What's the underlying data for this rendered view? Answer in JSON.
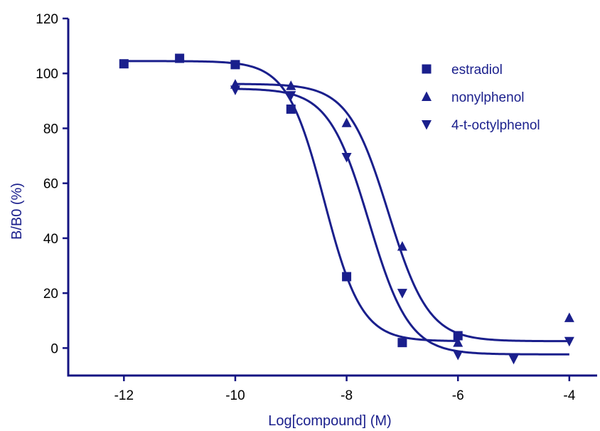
{
  "chart_data": {
    "type": "scatter",
    "title": "",
    "xlabel": "Log[compound] (M)",
    "ylabel": "B/B0 (%)",
    "xlim": [
      -13,
      -3.5
    ],
    "ylim": [
      -10,
      120
    ],
    "xticks": [
      -12,
      -10,
      -8,
      -6,
      -4
    ],
    "xtick_labels": [
      "-12",
      "-10",
      "-8",
      "-6",
      "-4"
    ],
    "yticks": [
      0,
      20,
      40,
      60,
      80,
      100,
      120
    ],
    "ytick_labels": [
      "0",
      "20",
      "40",
      "60",
      "80",
      "100",
      "120"
    ],
    "grid": false,
    "legend_position": "top-right",
    "series": [
      {
        "name": "estradiol",
        "marker": "square",
        "x": [
          -12,
          -11,
          -10,
          -9,
          -8,
          -7,
          -6
        ],
        "y": [
          103.5,
          105.5,
          103.2,
          87,
          26,
          2,
          4.5
        ],
        "fit": {
          "top": 104.5,
          "bottom": 2.5,
          "logEC50": -8.4,
          "hill": -1.3
        }
      },
      {
        "name": "nonylphenol",
        "marker": "triangle-up",
        "x": [
          -10,
          -9,
          -8,
          -7,
          -6,
          -4
        ],
        "y": [
          96,
          95.5,
          82,
          37,
          2,
          11
        ],
        "fit": {
          "top": 96.2,
          "bottom": 2.5,
          "logEC50": -7.25,
          "hill": -1.2
        }
      },
      {
        "name": "4-t-octylphenol",
        "marker": "triangle-down",
        "x": [
          -10,
          -9,
          -8,
          -7,
          -6,
          -5,
          -4
        ],
        "y": [
          94,
          92,
          69.5,
          20,
          -2.5,
          -4,
          2.5
        ],
        "fit": {
          "top": 94.5,
          "bottom": -2.3,
          "logEC50": -7.6,
          "hill": -1.2
        }
      }
    ],
    "colors": {
      "series": "#1a1f8c",
      "axis": "#141482",
      "text": "#1a1f8c"
    }
  }
}
